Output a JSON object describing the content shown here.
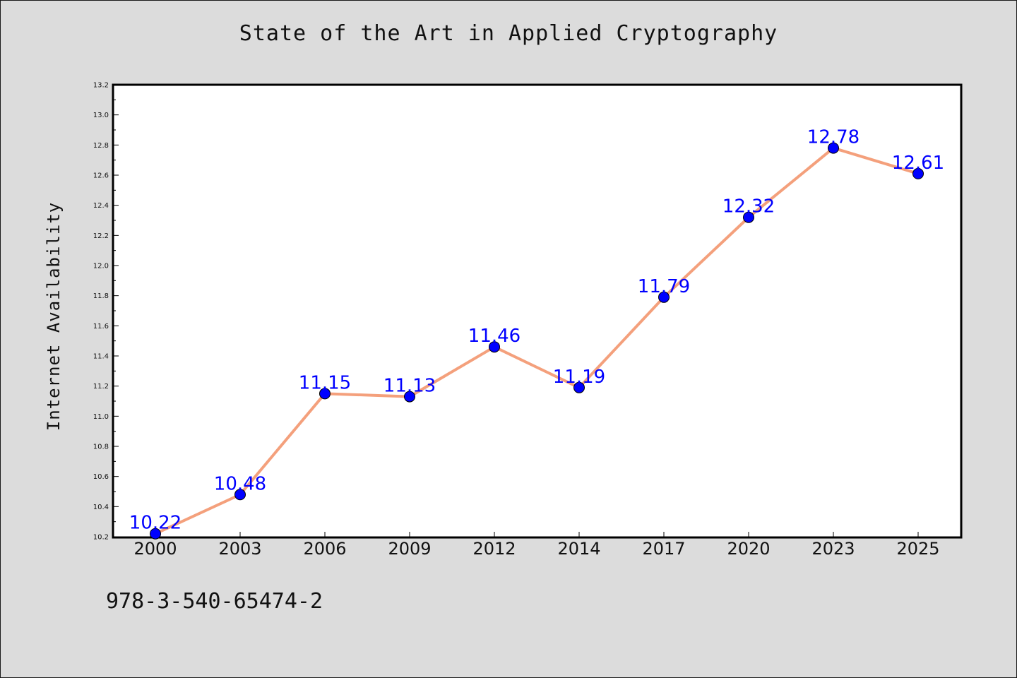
{
  "chart_data": {
    "type": "line",
    "title": "State of the Art in Applied Cryptography",
    "xlabel": "",
    "ylabel": "Internet Availability",
    "categories": [
      "2000",
      "2003",
      "2006",
      "2009",
      "2012",
      "2014",
      "2017",
      "2020",
      "2023",
      "2025"
    ],
    "values": [
      10.22,
      10.48,
      11.15,
      11.13,
      11.46,
      11.19,
      11.79,
      12.32,
      12.78,
      12.61
    ],
    "data_labels": [
      "10.22",
      "10.48",
      "11.15",
      "11.13",
      "11.46",
      "11.19",
      "11.79",
      "12.32",
      "12.78",
      "12.61"
    ],
    "ylim": [
      10.2,
      13.2
    ],
    "yticks": [
      "10.2",
      "10.4",
      "10.6",
      "10.8",
      "11.0",
      "11.2",
      "11.4",
      "11.6",
      "11.8",
      "12.0",
      "12.2",
      "12.4",
      "12.6",
      "12.8",
      "13.0",
      "13.2"
    ],
    "grid": false,
    "legend": "none",
    "line_color": "#f4a07c",
    "marker_color": "#0000ff",
    "label_color": "#0000ff",
    "plot_background": "#ffffff",
    "figure_background": "#dcdcdc"
  },
  "footer": {
    "code": "978-3-540-65474-2"
  }
}
